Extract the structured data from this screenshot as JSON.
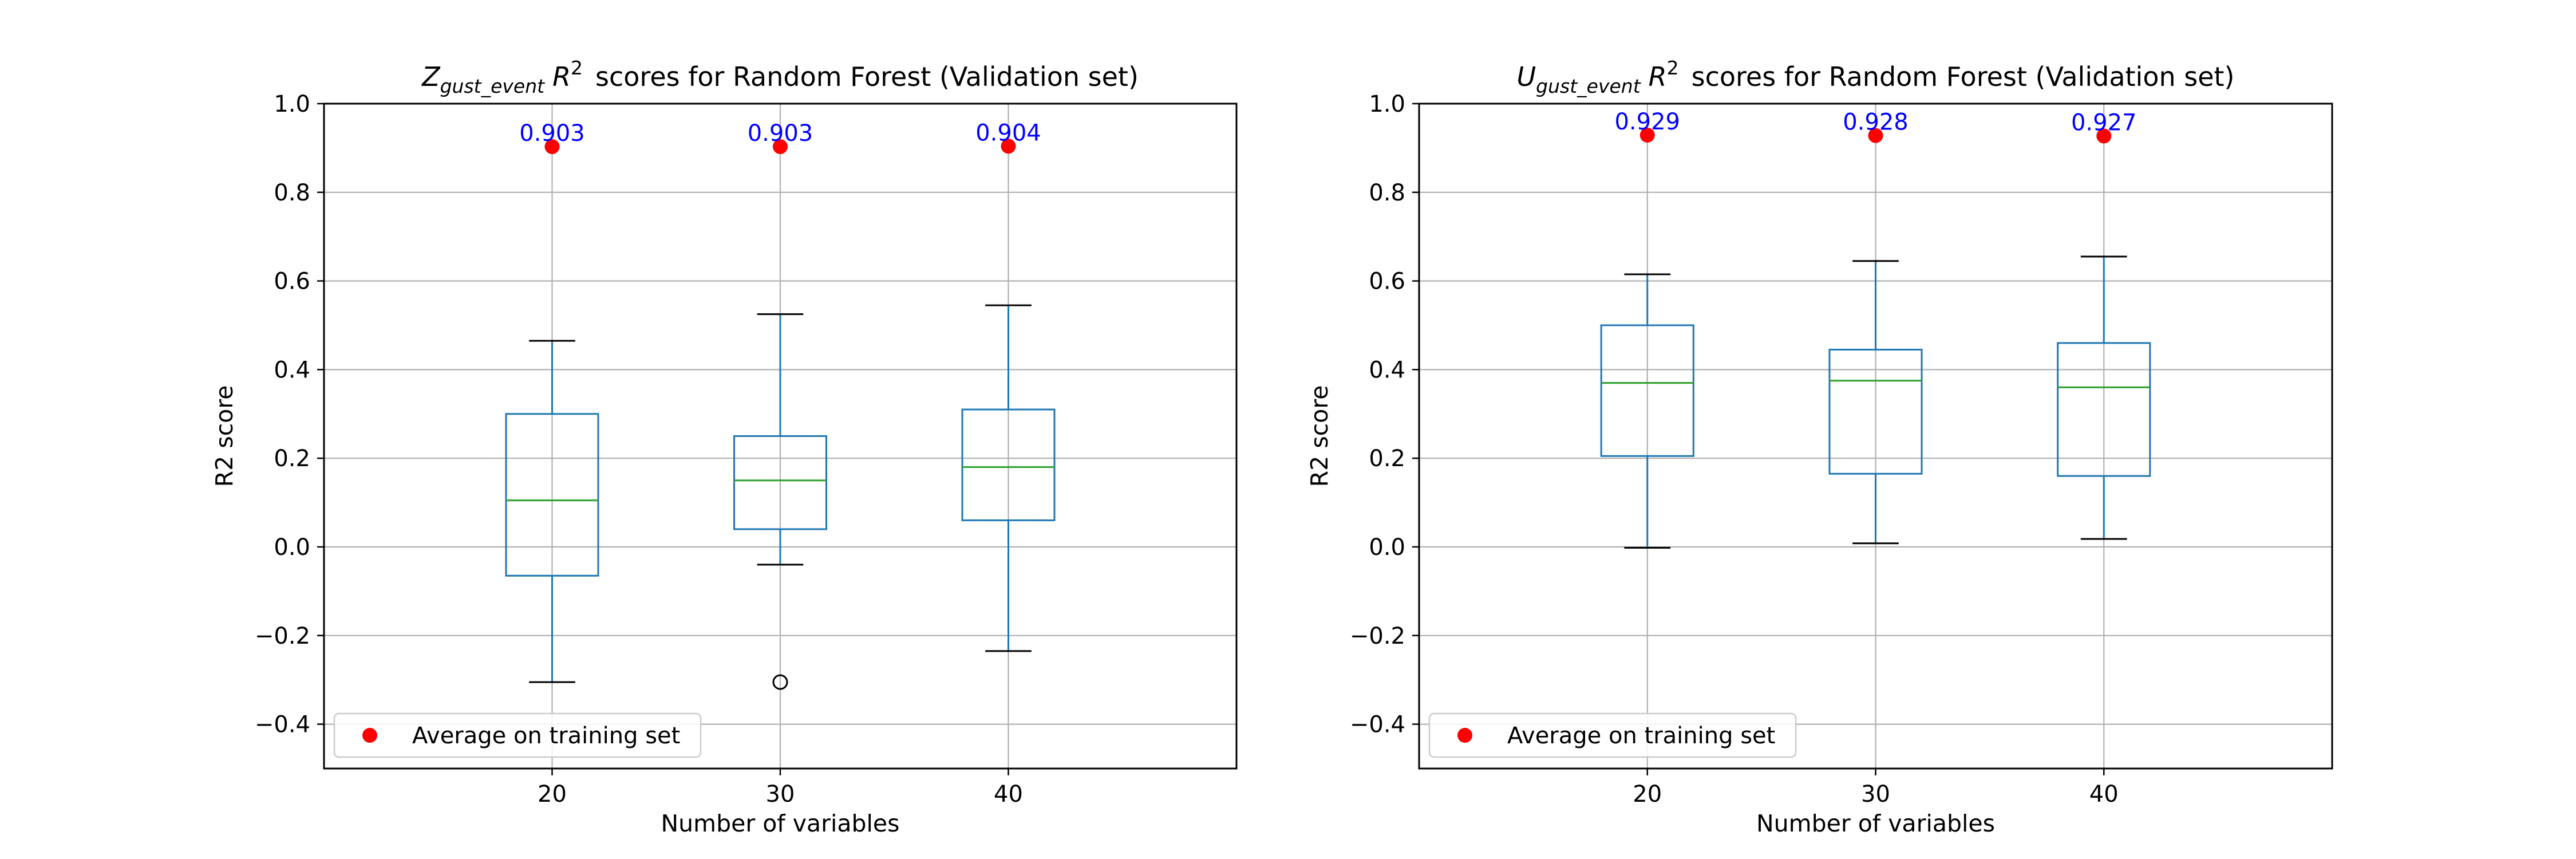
{
  "colors": {
    "box": "#1f77b4",
    "median": "#2ca02c",
    "whisker_cap": "#000000",
    "training_marker": "#ff0000",
    "training_label": "#0000ff",
    "grid": "#b0b0b0"
  },
  "chart_data": [
    {
      "type": "box",
      "title": {
        "var": "Z",
        "subscript": "gust_event",
        "metric": "R",
        "exponent": "2",
        "rest": "scores for Random Forest (Validation set)"
      },
      "xlabel": "Number of variables",
      "ylabel": "R2 score",
      "ylim": [
        -0.5,
        1.0
      ],
      "yticks": [
        "−0.4",
        "−0.2",
        "0.0",
        "0.2",
        "0.4",
        "0.6",
        "0.8",
        "1.0"
      ],
      "ytick_values": [
        -0.4,
        -0.2,
        0.0,
        0.2,
        0.4,
        0.6,
        0.8,
        1.0
      ],
      "categories": [
        "20",
        "30",
        "40"
      ],
      "grid": true,
      "legend": {
        "position": "lower-left",
        "label": "Average on training set"
      },
      "boxes": [
        {
          "whisker_low": -0.305,
          "q1": -0.065,
          "median": 0.105,
          "q3": 0.3,
          "whisker_high": 0.465,
          "outliers": []
        },
        {
          "whisker_low": -0.04,
          "q1": 0.04,
          "median": 0.15,
          "q3": 0.25,
          "whisker_high": 0.525,
          "outliers": [
            -0.305
          ]
        },
        {
          "whisker_low": -0.235,
          "q1": 0.06,
          "median": 0.18,
          "q3": 0.31,
          "whisker_high": 0.545,
          "outliers": []
        }
      ],
      "training_avg": [
        0.903,
        0.903,
        0.904
      ],
      "training_labels": [
        "0.903",
        "0.903",
        "0.904"
      ]
    },
    {
      "type": "box",
      "title": {
        "var": "U",
        "subscript": "gust_event",
        "metric": "R",
        "exponent": "2",
        "rest": "scores for Random Forest (Validation set)"
      },
      "xlabel": "Number of variables",
      "ylabel": "R2 score",
      "ylim": [
        -0.5,
        1.0
      ],
      "yticks": [
        "−0.4",
        "−0.2",
        "0.0",
        "0.2",
        "0.4",
        "0.6",
        "0.8",
        "1.0"
      ],
      "ytick_values": [
        -0.4,
        -0.2,
        0.0,
        0.2,
        0.4,
        0.6,
        0.8,
        1.0
      ],
      "categories": [
        "20",
        "30",
        "40"
      ],
      "grid": true,
      "legend": {
        "position": "lower-left",
        "label": "Average on training set"
      },
      "boxes": [
        {
          "whisker_low": -0.002,
          "q1": 0.205,
          "median": 0.37,
          "q3": 0.5,
          "whisker_high": 0.615,
          "outliers": []
        },
        {
          "whisker_low": 0.008,
          "q1": 0.165,
          "median": 0.375,
          "q3": 0.445,
          "whisker_high": 0.645,
          "outliers": []
        },
        {
          "whisker_low": 0.018,
          "q1": 0.16,
          "median": 0.36,
          "q3": 0.46,
          "whisker_high": 0.655,
          "outliers": []
        }
      ],
      "training_avg": [
        0.929,
        0.928,
        0.927
      ],
      "training_labels": [
        "0.929",
        "0.928",
        "0.927"
      ]
    }
  ]
}
